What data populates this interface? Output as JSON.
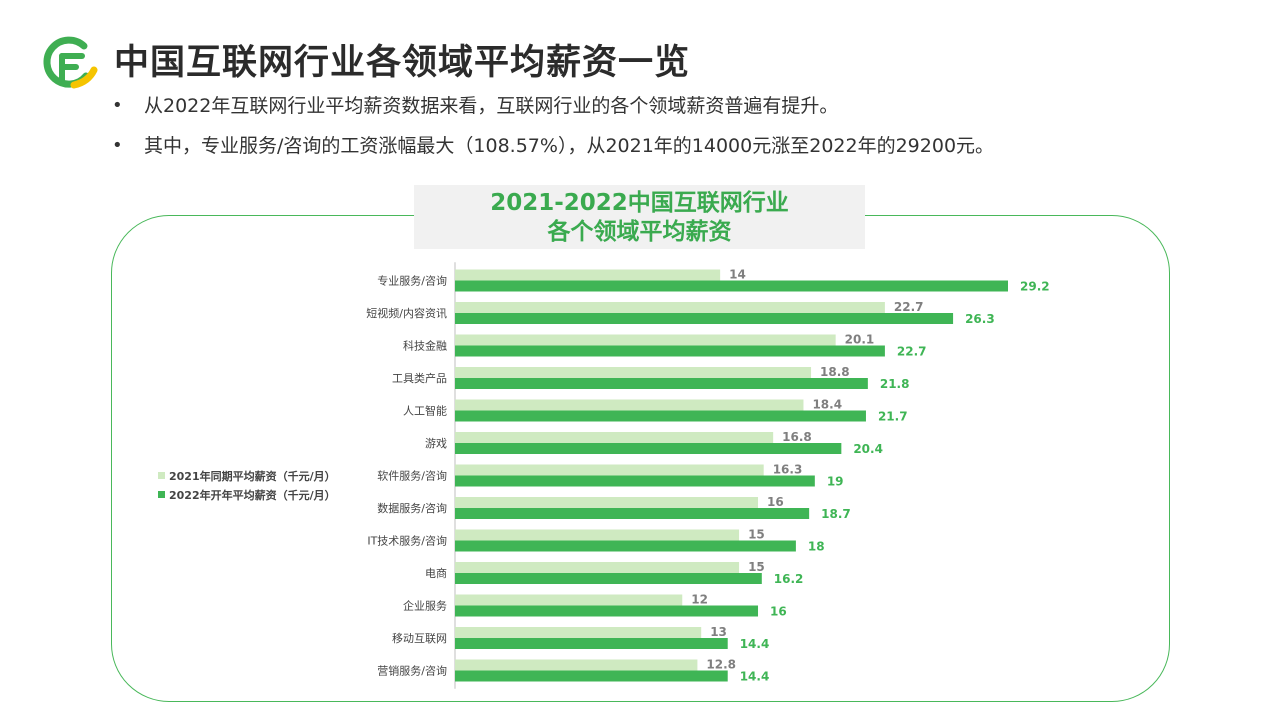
{
  "header": {
    "title": "中国互联网行业各领域平均薪资一览"
  },
  "bullets": [
    "从2022年互联网行业平均薪资数据来看，互联网行业的各个领域薪资普遍有提升。",
    "其中，专业服务/咨询的工资涨幅最大（108.57%），从2021年的14000元涨至2022年的29200元。"
  ],
  "colors": {
    "series_2021": "#cfeac1",
    "series_2022": "#3fb555",
    "label_2021": "#7f7f7f",
    "label_2022": "#3fb555",
    "frame": "#49b85a",
    "logo_green": "#3fae52",
    "logo_yellow": "#f5c400"
  },
  "chart_data": {
    "type": "bar",
    "orientation": "horizontal",
    "title_lines": [
      "2021-2022中国互联网行业",
      "各个领域平均薪资"
    ],
    "categories": [
      "专业服务/咨询",
      "短视频/内容资讯",
      "科技金融",
      "工具类产品",
      "人工智能",
      "游戏",
      "软件服务/咨询",
      "数据服务/咨询",
      "IT技术服务/咨询",
      "电商",
      "企业服务",
      "移动互联网",
      "营销服务/咨询"
    ],
    "series": [
      {
        "name": "2021年同期平均薪资（千元/月）",
        "values": [
          14,
          22.7,
          20.1,
          18.8,
          18.4,
          16.8,
          16.3,
          16,
          15,
          15,
          12,
          13,
          12.8
        ]
      },
      {
        "name": "2022年开年平均薪资（千元/月）",
        "values": [
          29.2,
          26.3,
          22.7,
          21.8,
          21.7,
          20.4,
          19,
          18.7,
          18,
          16.2,
          16,
          14.4,
          14.4
        ]
      }
    ],
    "xlim": [
      0,
      30
    ],
    "legend_position": "left",
    "data_labels": true,
    "grid": false
  }
}
